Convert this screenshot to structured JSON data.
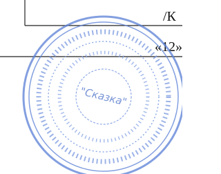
{
  "document": {
    "signature_text": "/К",
    "date_text": "«12»",
    "stamp": {
      "name": "\"Сказка\""
    }
  }
}
